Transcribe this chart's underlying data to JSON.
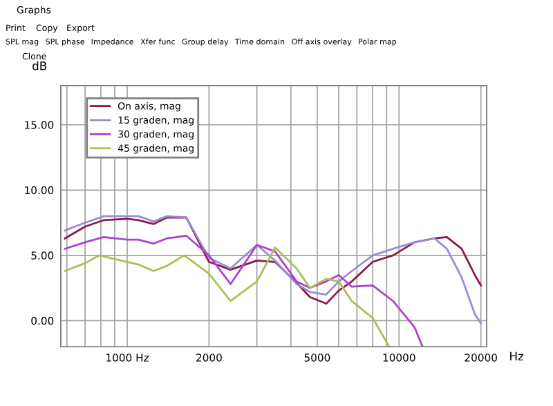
{
  "chart_data": {
    "type": "line",
    "title": "Graphs",
    "annotations": [
      "Print",
      "Copy",
      "Export",
      "SPL mag",
      "SPL phase",
      "Impedance",
      "Xfer func",
      "Group delay",
      "Time domain",
      "Off axis overlay",
      "Polar map",
      "Clone"
    ],
    "xlabel": "Hz",
    "ylabel": "dB",
    "log": "x",
    "grid": true,
    "legend": "top left",
    "marker": "none",
    "line_style": "solid",
    "xlim": [
      570,
      21000
    ],
    "ylim": [
      -2,
      18
    ],
    "xticks": [
      {
        "value": 600,
        "label": null
      },
      {
        "value": 700,
        "label": null
      },
      {
        "value": 800,
        "label": null
      },
      {
        "value": 900,
        "label": null
      },
      {
        "value": 1000,
        "label": "1000 Hz"
      },
      2000,
      {
        "value": 3000,
        "label": null
      },
      {
        "value": 4000,
        "label": null
      },
      5000,
      {
        "value": 6000,
        "label": null
      },
      {
        "value": 7000,
        "label": null
      },
      {
        "value": 8000,
        "label": null
      },
      {
        "value": 9000,
        "label": null
      },
      10000,
      20000
    ],
    "yticks": [
      {
        "value": 0,
        "label": "0.00"
      },
      {
        "value": 5,
        "label": "5.00"
      },
      {
        "value": 10,
        "label": "10.00"
      },
      {
        "value": 15,
        "label": "15.00"
      }
    ],
    "x": [
      590,
      700,
      820,
      1000,
      1100,
      1250,
      1400,
      1650,
      2000,
      2400,
      3000,
      3500,
      4200,
      4700,
      5400,
      6000,
      6700,
      8000,
      9500,
      11400,
      13500,
      15000,
      17000,
      19000,
      20000
    ],
    "series": [
      {
        "name": "On axis, mag",
        "color": "#8b1a4a",
        "values": [
          6.3,
          7.2,
          7.7,
          7.8,
          7.7,
          7.4,
          7.9,
          7.9,
          4.5,
          3.9,
          4.6,
          4.5,
          2.9,
          1.8,
          1.3,
          2.3,
          3.0,
          4.5,
          5.0,
          6.0,
          6.3,
          6.4,
          5.5,
          3.5,
          2.7
        ]
      },
      {
        "name": "15 graden, mag",
        "color": "#9a8ad8",
        "values": [
          6.9,
          7.5,
          8.0,
          8.0,
          8.0,
          7.6,
          8.0,
          7.9,
          4.8,
          4.0,
          5.8,
          4.6,
          2.8,
          2.2,
          2.0,
          3.0,
          3.8,
          5.0,
          5.5,
          6.0,
          6.3,
          5.5,
          3.3,
          0.5,
          -0.2
        ]
      },
      {
        "name": "30 graden, mag",
        "color": "#b040d0",
        "x": [
          590,
          700,
          820,
          1000,
          1100,
          1250,
          1400,
          1650,
          2000,
          2400,
          3000,
          3500,
          4200,
          4700,
          5400,
          6000,
          6700,
          8000,
          9500,
          11400,
          12200
        ],
        "values": [
          5.5,
          6.0,
          6.4,
          6.2,
          6.2,
          5.9,
          6.3,
          6.5,
          5.0,
          2.8,
          5.8,
          5.3,
          3.0,
          2.5,
          3.0,
          3.5,
          2.6,
          2.7,
          1.5,
          -0.5,
          -2.0
        ]
      },
      {
        "name": "45 graden, mag",
        "color": "#a8c050",
        "x": [
          590,
          700,
          790,
          1000,
          1100,
          1250,
          1400,
          1620,
          2000,
          2400,
          3000,
          3500,
          4200,
          4700,
          5400,
          6000,
          6700,
          8000,
          9200
        ],
        "values": [
          3.8,
          4.4,
          5.0,
          4.5,
          4.3,
          3.8,
          4.2,
          5.0,
          3.6,
          1.5,
          3.0,
          5.6,
          4.0,
          2.5,
          3.2,
          3.0,
          1.5,
          0.2,
          -2.0
        ]
      }
    ]
  }
}
